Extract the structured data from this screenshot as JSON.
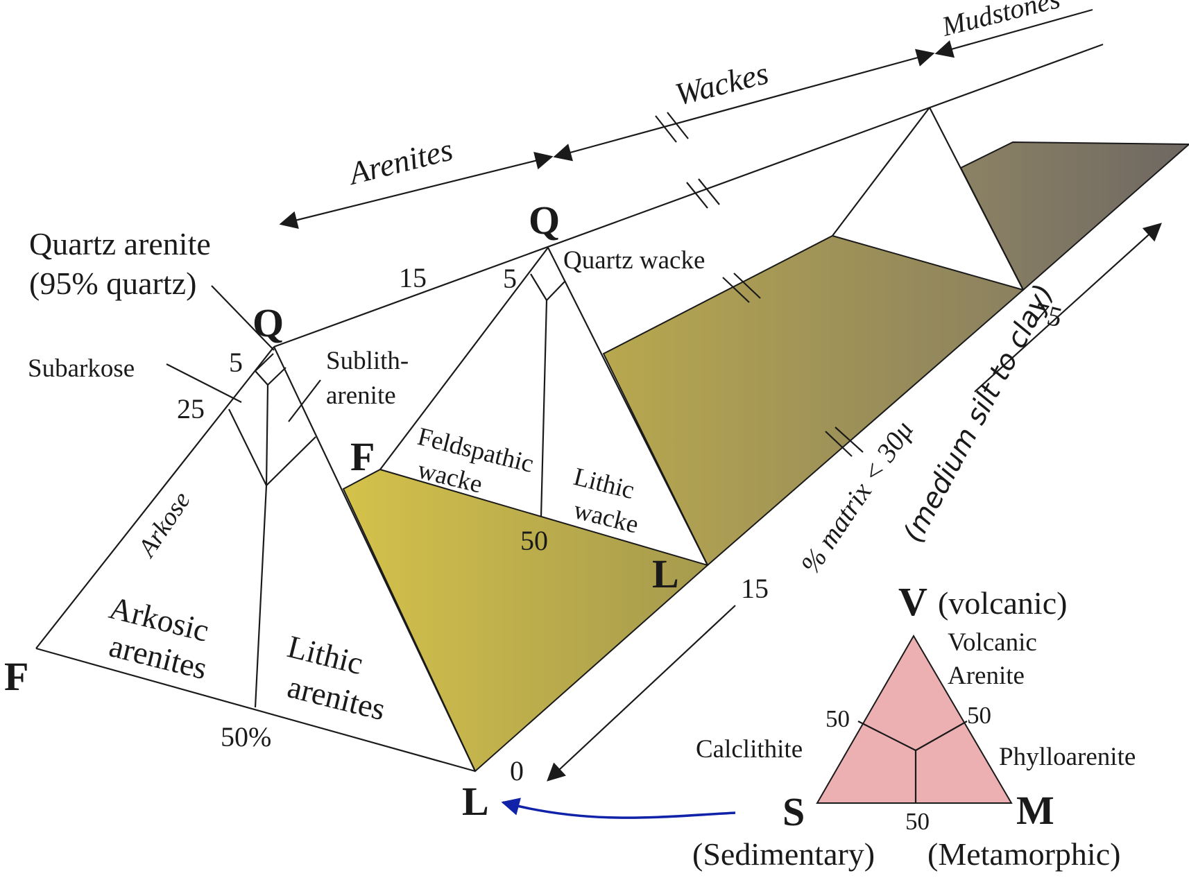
{
  "labels": {
    "arenites": "Arenites",
    "wackes": "Wackes",
    "mudstones": "Mudstones",
    "quartz_arenite": "Quartz arenite",
    "quartz_arenite_pct": "(95% quartz)",
    "subarkose": "Subarkose",
    "sublith1": "Sublith-",
    "sublith2": "arenite",
    "arkose": "Arkose",
    "arkosic1": "Arkosic",
    "arkosic2": "arenites",
    "lithic_ar1": "Lithic",
    "lithic_ar2": "arenites",
    "feldspathic1": "Feldspathic",
    "feldspathic2": "wacke",
    "lithic_w1": "Lithic",
    "lithic_w2": "wacke",
    "quartz_wacke": "Quartz wacke",
    "matrix1": "% matrix < 30μ",
    "matrix2": "(medium silt to clay)"
  },
  "vertices": {
    "q1": "Q",
    "f1": "F",
    "l1": "L",
    "q2": "Q",
    "f2": "F",
    "l2": "L"
  },
  "ticks": {
    "t5a": "5",
    "t25": "25",
    "t50pct": "50%",
    "t15top": "15",
    "t5b": "5",
    "t50b": "50",
    "t0": "0",
    "t15": "15",
    "t75": "75"
  },
  "inset": {
    "v": "V",
    "v_desc": "(volcanic)",
    "s": "S",
    "s_desc": "(Sedimentary)",
    "m": "M",
    "m_desc": "(Metamorphic)",
    "volcanic1": "Volcanic",
    "volcanic2": "Arenite",
    "calclithite": "Calclithite",
    "phylloarenite": "Phylloarenite",
    "n50l": "50",
    "n50r": "50",
    "n50b": "50"
  },
  "colors": {
    "olive_light": "#d4c24a",
    "olive_mid": "#a69a4e",
    "olive_dark": "#6e6762",
    "inset_fill": "#ecafb2",
    "arrow_blue": "#0f22a8"
  }
}
